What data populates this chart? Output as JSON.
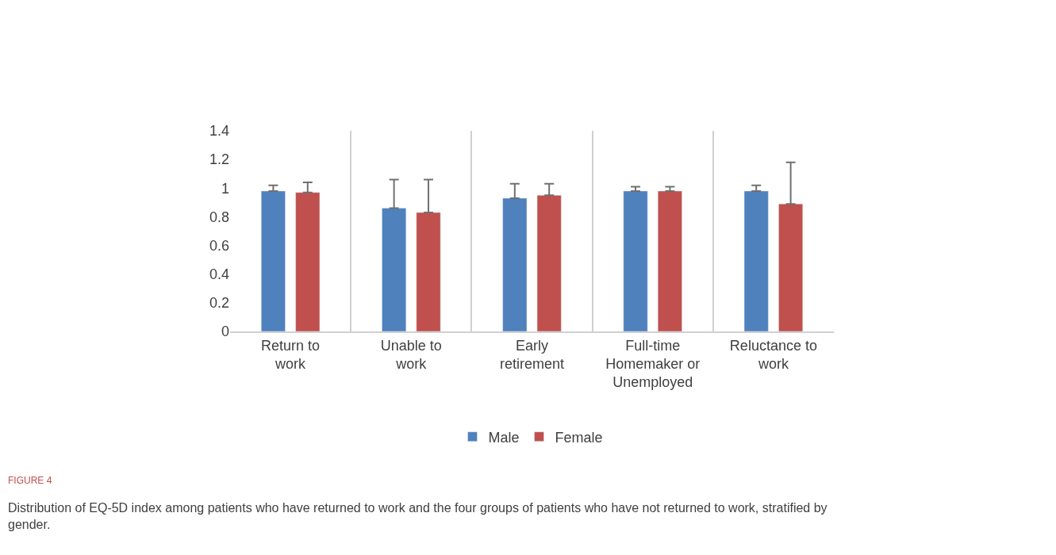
{
  "chart_data": {
    "type": "bar",
    "categories": [
      "Return to work",
      "Unable to work",
      "Early retirement",
      "Full-time Homemaker or Unemployed",
      "Reluctance to work"
    ],
    "series": [
      {
        "name": "Male",
        "color": "#4f81bd",
        "values": [
          0.98,
          0.86,
          0.93,
          0.98,
          0.98
        ],
        "errors": [
          [
            0.98,
            1.02
          ],
          [
            0.86,
            1.06
          ],
          [
            0.93,
            1.03
          ],
          [
            0.98,
            1.01
          ],
          [
            0.98,
            1.02
          ]
        ]
      },
      {
        "name": "Female",
        "color": "#c0504d",
        "values": [
          0.97,
          0.83,
          0.95,
          0.98,
          0.89
        ],
        "errors": [
          [
            0.97,
            1.04
          ],
          [
            0.83,
            1.06
          ],
          [
            0.95,
            1.03
          ],
          [
            0.98,
            1.01
          ],
          [
            0.89,
            1.18
          ]
        ]
      }
    ],
    "ylim": [
      0,
      1.4
    ],
    "yticks": [
      0,
      0.2,
      0.4,
      0.6,
      0.8,
      1,
      1.2,
      1.4
    ],
    "grid": "x",
    "legend": "bottom",
    "annotations": [
      "FIGURE 4",
      "Distribution of EQ-5D index among patients who have returned to work and the four groups of patients who have not returned to work, stratified by gender."
    ]
  }
}
